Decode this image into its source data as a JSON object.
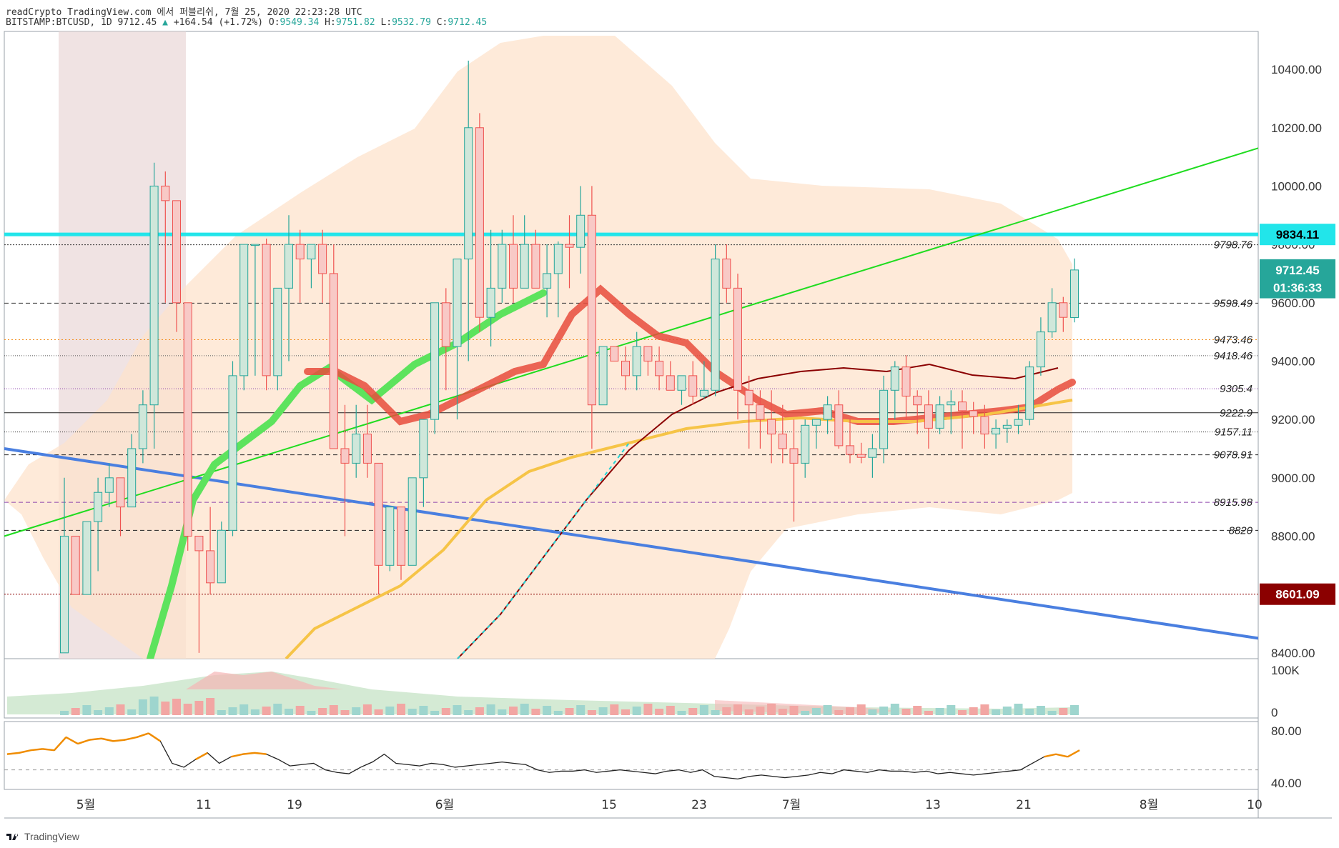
{
  "header": {
    "line1": "readCrypto TradingView.com 에서 퍼블리쉬, 7월 25, 2020 22:23:28 UTC",
    "symbol": "BITSTAMP:BTCUSD, 1D",
    "last": "9712.45",
    "change": "+164.54 (+1.72%)",
    "o_label": "O:",
    "o": "9549.34",
    "h_label": "H:",
    "h": "9751.82",
    "l_label": "L:",
    "l": "9532.79",
    "c_label": "C:",
    "c": "9712.45"
  },
  "brand": {
    "name": "TradingView"
  },
  "colors": {
    "up": "#26a69a",
    "down": "#ef5350",
    "resistance_cyan": "#22e5ea",
    "trend_blue": "#4a7fe0",
    "trend_green": "#1fdc1f",
    "band": "#fde3cc",
    "dark_red_badge": "#8b0000",
    "teal_badge": "#26a69a"
  },
  "chart_data": [
    {
      "type": "line",
      "title": "",
      "ylim": [
        8380,
        10530
      ],
      "y_ticks": [
        "10400.00",
        "10200.00",
        "10000.00",
        "9800.00",
        "9600.00",
        "9400.00",
        "9200.00",
        "9000.00",
        "8800.00",
        "8400.00"
      ],
      "x_ticks": [
        "5월",
        "11",
        "19",
        "6월",
        "15",
        "23",
        "7월",
        "13",
        "21",
        "8월",
        "10"
      ],
      "price_badges": [
        {
          "label": "9834.11",
          "kind": "cyan"
        },
        {
          "label": "9712.45",
          "kind": "teal"
        },
        {
          "label": "01:36:33",
          "kind": "teal"
        },
        {
          "label": "8601.09",
          "kind": "darkred"
        }
      ],
      "level_labels": [
        "9798.76",
        "9598.49",
        "9473.46",
        "9418.46",
        "9305.4",
        "9222.9",
        "9157.11",
        "9078.91",
        "8915.98",
        "8820"
      ],
      "series": [
        {
          "candles_ohlc": [
            [
              8400,
              9000,
              8400,
              8800
            ],
            [
              8800,
              8800,
              8600,
              8600
            ],
            [
              8600,
              8850,
              8600,
              8850
            ],
            [
              8850,
              9000,
              8680,
              8950
            ],
            [
              8950,
              9050,
              8900,
              9000
            ],
            [
              9000,
              9000,
              8800,
              8900
            ],
            [
              8900,
              9150,
              8900,
              9100
            ],
            [
              9100,
              9300,
              9050,
              9250
            ],
            [
              9250,
              10080,
              9100,
              10000
            ],
            [
              10000,
              10050,
              9600,
              9950
            ],
            [
              9950,
              9950,
              9500,
              9600
            ],
            [
              9600,
              9600,
              8750,
              8800
            ],
            [
              8800,
              8800,
              8400,
              8750
            ],
            [
              8750,
              8900,
              8600,
              8640
            ],
            [
              8640,
              8850,
              8640,
              8820
            ],
            [
              8820,
              9400,
              8800,
              9350
            ],
            [
              9350,
              9600,
              9300,
              9800
            ],
            [
              9800,
              9800,
              9350,
              9800
            ],
            [
              9800,
              9820,
              9300,
              9350
            ],
            [
              9350,
              9600,
              9300,
              9650
            ],
            [
              9650,
              9900,
              9400,
              9800
            ],
            [
              9800,
              9850,
              9600,
              9750
            ],
            [
              9750,
              9800,
              9650,
              9800
            ],
            [
              9800,
              9850,
              9600,
              9700
            ],
            [
              9700,
              9800,
              9100,
              9100
            ],
            [
              9100,
              9250,
              8800,
              9050
            ],
            [
              9050,
              9250,
              9000,
              9150
            ],
            [
              9150,
              9250,
              9000,
              9050
            ],
            [
              9050,
              8850,
              8600,
              8700
            ],
            [
              8700,
              8900,
              8680,
              8900
            ],
            [
              8900,
              8900,
              8650,
              8700
            ],
            [
              8700,
              9000,
              8850,
              9000
            ],
            [
              9000,
              9200,
              8900,
              9200
            ],
            [
              9200,
              9600,
              9150,
              9600
            ],
            [
              9600,
              9650,
              9300,
              9450
            ],
            [
              9450,
              9600,
              9200,
              9750
            ],
            [
              9750,
              10430,
              9400,
              10200
            ],
            [
              10200,
              10250,
              9500,
              9550
            ],
            [
              9550,
              9850,
              9450,
              9650
            ],
            [
              9650,
              9850,
              9600,
              9800
            ],
            [
              9800,
              9900,
              9600,
              9650
            ],
            [
              9650,
              9900,
              9650,
              9800
            ],
            [
              9800,
              9850,
              9650,
              9650
            ],
            [
              9650,
              9800,
              9550,
              9700
            ],
            [
              9700,
              9810,
              9550,
              9800
            ],
            [
              9800,
              9900,
              9650,
              9790
            ],
            [
              9790,
              10000,
              9700,
              9900
            ],
            [
              9900,
              10000,
              9100,
              9250
            ],
            [
              9250,
              9450,
              9250,
              9450
            ],
            [
              9450,
              9450,
              9400,
              9400
            ],
            [
              9400,
              9450,
              9300,
              9350
            ],
            [
              9350,
              9500,
              9300,
              9450
            ],
            [
              9450,
              9450,
              9350,
              9400
            ],
            [
              9400,
              9450,
              9300,
              9350
            ],
            [
              9350,
              9400,
              9300,
              9300
            ],
            [
              9300,
              9350,
              9250,
              9350
            ],
            [
              9350,
              9400,
              9250,
              9280
            ],
            [
              9280,
              9400,
              9270,
              9300
            ],
            [
              9300,
              9800,
              9280,
              9750
            ],
            [
              9750,
              9800,
              9600,
              9650
            ],
            [
              9650,
              9700,
              9200,
              9300
            ],
            [
              9300,
              9350,
              9100,
              9250
            ],
            [
              9250,
              9300,
              9100,
              9200
            ],
            [
              9200,
              9300,
              9050,
              9150
            ],
            [
              9150,
              9250,
              9050,
              9100
            ],
            [
              9100,
              9200,
              8850,
              9050
            ],
            [
              9050,
              9200,
              9000,
              9180
            ],
            [
              9180,
              9200,
              9100,
              9200
            ],
            [
              9200,
              9280,
              9150,
              9250
            ],
            [
              9250,
              9300,
              9100,
              9110
            ],
            [
              9110,
              9200,
              9050,
              9080
            ],
            [
              9080,
              9120,
              9050,
              9070
            ],
            [
              9070,
              9150,
              9000,
              9100
            ],
            [
              9100,
              9350,
              9050,
              9300
            ],
            [
              9300,
              9400,
              9200,
              9380
            ],
            [
              9380,
              9420,
              9200,
              9280
            ],
            [
              9280,
              9300,
              9150,
              9250
            ],
            [
              9250,
              9300,
              9100,
              9170
            ],
            [
              9170,
              9280,
              9150,
              9250
            ],
            [
              9250,
              9300,
              9150,
              9260
            ],
            [
              9260,
              9300,
              9100,
              9230
            ],
            [
              9230,
              9260,
              9150,
              9210
            ],
            [
              9210,
              9250,
              9100,
              9150
            ],
            [
              9150,
              9200,
              9100,
              9170
            ],
            [
              9170,
              9200,
              9120,
              9180
            ],
            [
              9180,
              9250,
              9150,
              9200
            ],
            [
              9200,
              9400,
              9180,
              9380
            ],
            [
              9380,
              9550,
              9350,
              9500
            ],
            [
              9500,
              9650,
              9480,
              9600
            ],
            [
              9600,
              9620,
              9500,
              9550
            ],
            [
              9549.34,
              9751.82,
              9532.79,
              9712.45
            ]
          ]
        }
      ]
    },
    {
      "type": "bar",
      "title": "",
      "y_ticks": [
        "100K",
        "0"
      ]
    },
    {
      "type": "line",
      "title": "",
      "ylim": [
        35,
        87
      ],
      "y_ticks": [
        "80.00",
        "40.00"
      ],
      "series": [
        {
          "values": [
            62,
            63,
            65,
            66,
            65,
            75,
            70,
            73,
            74,
            72,
            73,
            75,
            78,
            72,
            55,
            52,
            58,
            63,
            55,
            60,
            62,
            63,
            62,
            58,
            53,
            54,
            55,
            50,
            48,
            47,
            52,
            56,
            62,
            55,
            54,
            53,
            55,
            54,
            52,
            53,
            54,
            55,
            56,
            55,
            54,
            50,
            48,
            49,
            49,
            50,
            48,
            49,
            50,
            49,
            48,
            47,
            49,
            50,
            48,
            50,
            45,
            44,
            43,
            45,
            46,
            45,
            44,
            45,
            46,
            48,
            47,
            50,
            49,
            48,
            50,
            49,
            49,
            48,
            49,
            47,
            48,
            47,
            46,
            47,
            48,
            49,
            50,
            55,
            60,
            62,
            60,
            65
          ]
        }
      ]
    }
  ]
}
